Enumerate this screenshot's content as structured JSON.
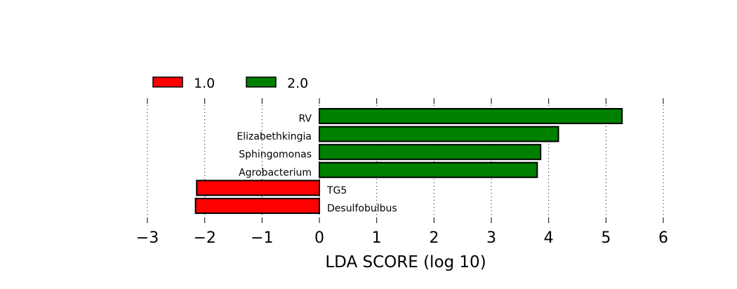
{
  "chart_data": {
    "type": "bar",
    "orientation": "horizontal",
    "xlabel": "LDA SCORE (log 10)",
    "xlim": [
      -3,
      6
    ],
    "xticks": [
      -3,
      -2,
      -1,
      0,
      1,
      2,
      3,
      4,
      5,
      6
    ],
    "xtick_labels": [
      "−3",
      "−2",
      "−1",
      "0",
      "1",
      "2",
      "3",
      "4",
      "5",
      "6"
    ],
    "grid": "vertical dotted",
    "legend_placement": "top-left",
    "legend": [
      {
        "name": "1.0",
        "color": "#ff0000"
      },
      {
        "name": "2.0",
        "color": "#008000"
      }
    ],
    "categories": [
      "RV",
      "Elizabethkingia",
      "Sphingomonas",
      "Agrobacterium",
      "TG5",
      "Desulfobulbus"
    ],
    "values": [
      5.28,
      4.17,
      3.86,
      3.8,
      -2.14,
      -2.16
    ],
    "groups": [
      "2.0",
      "2.0",
      "2.0",
      "2.0",
      "1.0",
      "1.0"
    ]
  }
}
